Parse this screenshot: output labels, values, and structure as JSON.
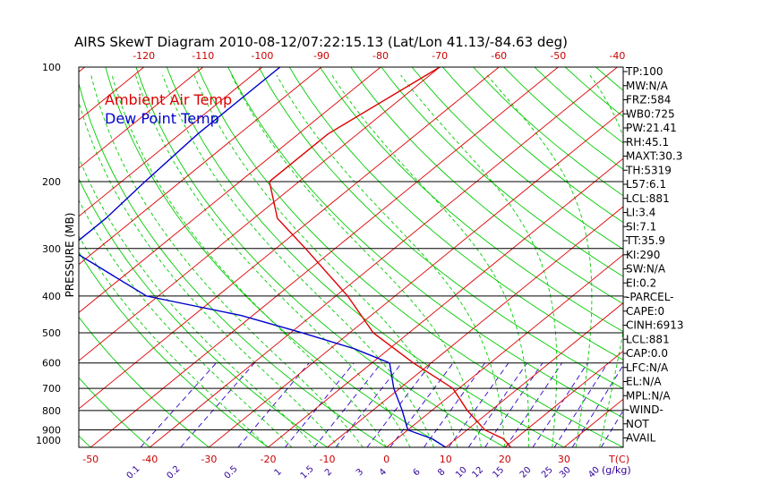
{
  "chart_data": {
    "type": "line",
    "title": "AIRS SkewT Diagram 2010-08-12/07:22:15.13 (Lat/Lon 41.13/-84.63 deg)",
    "ylabel": "PRESSURE (MB)",
    "xlabel": "T(C)",
    "mixing_ratio_unit": "(g/kg)",
    "y_scale": "log",
    "ylim": [
      1000,
      100
    ],
    "xlim_bottom": [
      -52,
      40
    ],
    "xlim_top": [
      -131,
      -39
    ],
    "pressure_ticks": [
      "100",
      "200",
      "300",
      "400",
      "500",
      "600",
      "700",
      "800",
      "900",
      "1000"
    ],
    "bottom_temp_ticks": [
      "-50",
      "-40",
      "-30",
      "-20",
      "-10",
      "0",
      "10",
      "20",
      "30"
    ],
    "top_temp_ticks": [
      "-120",
      "-110",
      "-100",
      "-90",
      "-80",
      "-70",
      "-60",
      "-50",
      "-40"
    ],
    "mixing_ratio_labels": [
      "0.1",
      "0.2",
      "0.5",
      "1",
      "1.5",
      "2",
      "3",
      "4",
      "6",
      "8",
      "10",
      "12",
      "15",
      "20",
      "25",
      "30",
      "40"
    ],
    "grid": true,
    "legend_position": "top-left",
    "series": [
      {
        "name": "Ambient Air Temp",
        "color": "#dd0000",
        "points": [
          {
            "p": 100,
            "t": -70
          },
          {
            "p": 150,
            "t": -75
          },
          {
            "p": 200,
            "t": -75
          },
          {
            "p": 250,
            "t": -66
          },
          {
            "p": 300,
            "t": -55
          },
          {
            "p": 400,
            "t": -38
          },
          {
            "p": 500,
            "t": -26
          },
          {
            "p": 600,
            "t": -13
          },
          {
            "p": 700,
            "t": -1
          },
          {
            "p": 800,
            "t": 6
          },
          {
            "p": 900,
            "t": 13
          },
          {
            "p": 950,
            "t": 18
          },
          {
            "p": 1000,
            "t": 21
          }
        ]
      },
      {
        "name": "Dew Point Temp",
        "color": "#0000cc",
        "points": [
          {
            "p": 100,
            "t": -97
          },
          {
            "p": 150,
            "t": -97
          },
          {
            "p": 200,
            "t": -96
          },
          {
            "p": 250,
            "t": -95
          },
          {
            "p": 300,
            "t": -95
          },
          {
            "p": 400,
            "t": -72
          },
          {
            "p": 450,
            "t": -52
          },
          {
            "p": 500,
            "t": -38
          },
          {
            "p": 550,
            "t": -26
          },
          {
            "p": 600,
            "t": -17
          },
          {
            "p": 700,
            "t": -11
          },
          {
            "p": 800,
            "t": -5
          },
          {
            "p": 900,
            "t": 0
          },
          {
            "p": 950,
            "t": 6
          },
          {
            "p": 1000,
            "t": 10
          }
        ]
      }
    ],
    "indices": [
      "TP:100",
      "MW:N/A",
      "FRZ:584",
      "WB0:725",
      "PW:21.41",
      "RH:45.1",
      "MAXT:30.3",
      "TH:5319",
      "L57:6.1",
      "LCL:881",
      "LI:3.4",
      "SI:7.1",
      "TT:35.9",
      "KI:290",
      "SW:N/A",
      "EI:0.2",
      "-PARCEL-",
      "CAPE:0",
      "CINH:6913",
      "LCL:881",
      "CAP:0.0",
      "LFC:N/A",
      "EL:N/A",
      "MPL:N/A",
      "-WIND-",
      "NOT",
      "AVAIL"
    ],
    "colors": {
      "isotherm": "#dd0000",
      "dry_adiabat": "#00cc00",
      "moist_adiabat": "#00cc00",
      "mixing_ratio": "#3300cc",
      "isobar": "#000000",
      "text": "#000000",
      "tick_label": "#cc0000",
      "mixing_label": "#330099"
    }
  }
}
